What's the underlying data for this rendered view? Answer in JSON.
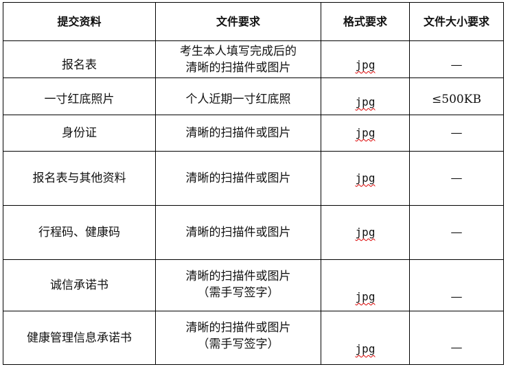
{
  "header": [
    "提交资料",
    "文件要求",
    "格式要求",
    "文件大小要求"
  ],
  "rows": [
    {
      "material": "报名表",
      "requirement": [
        "考生本人填写完成后的",
        "清晰的扫描件或图片"
      ],
      "format": "jpg",
      "size": "—"
    },
    {
      "material": "一寸红底照片",
      "requirement": [
        "个人近期一寸红底照"
      ],
      "format": "jpg",
      "size": "≤500KB"
    },
    {
      "material": "身份证",
      "requirement": [
        "清晰的扫描件或图片"
      ],
      "format": "jpg",
      "size": "—"
    },
    {
      "material": "报名表与其他资料",
      "requirement": [
        "清晰的扫描件或图片"
      ],
      "format": "jpg",
      "size": "—"
    },
    {
      "material": "行程码、健康码",
      "requirement": [
        "清晰的扫描件或图片"
      ],
      "format": "jpg",
      "size": "—"
    },
    {
      "material": "诚信承诺书",
      "requirement": [
        "清晰的扫描件或图片",
        "（需手写签字）"
      ],
      "format": "jpg",
      "size": "—"
    },
    {
      "material": "健康管理信息承诺书",
      "requirement": [
        "清晰的扫描件或图片",
        "（需手写签字）"
      ],
      "format": "jpg",
      "size": "—"
    }
  ],
  "colors": {
    "spellcheck_underline": "#dd0000",
    "border": "#000000"
  }
}
